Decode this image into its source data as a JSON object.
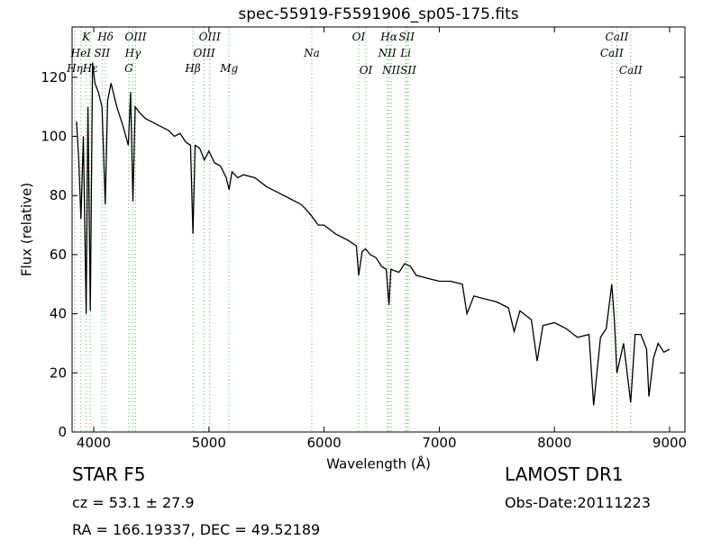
{
  "chart_data": {
    "type": "line",
    "title": "spec-55919-F5591906_sp05-175.fits",
    "xlabel": "Wavelength (Å)",
    "ylabel": "Flux (relative)",
    "xlim": [
      3812,
      9133
    ],
    "ylim": [
      0,
      137
    ],
    "xticks": [
      4000,
      5000,
      6000,
      7000,
      8000,
      9000
    ],
    "yticks": [
      0,
      20,
      40,
      60,
      80,
      100,
      120
    ],
    "line_color": "#000000",
    "marker_color": "#5cb85c",
    "x": [
      3850,
      3870,
      3889,
      3910,
      3934,
      3950,
      3970,
      3990,
      4010,
      4040,
      4072,
      4100,
      4120,
      4150,
      4200,
      4250,
      4300,
      4320,
      4340,
      4360,
      4400,
      4450,
      4500,
      4550,
      4600,
      4650,
      4700,
      4750,
      4800,
      4840,
      4861,
      4880,
      4920,
      4960,
      5000,
      5050,
      5100,
      5150,
      5175,
      5200,
      5250,
      5300,
      5400,
      5500,
      5600,
      5700,
      5800,
      5850,
      5893,
      5950,
      6000,
      6100,
      6200,
      6280,
      6300,
      6330,
      6360,
      6400,
      6450,
      6500,
      6540,
      6563,
      6580,
      6650,
      6700,
      6750,
      6800,
      6900,
      7000,
      7100,
      7200,
      7240,
      7300,
      7400,
      7500,
      7600,
      7650,
      7700,
      7800,
      7850,
      7900,
      8000,
      8100,
      8200,
      8300,
      8340,
      8400,
      8450,
      8498,
      8520,
      8542,
      8600,
      8662,
      8700,
      8750,
      8800,
      8820,
      8860,
      8900,
      8950,
      9000
    ],
    "series": [
      {
        "values": [
          105,
          92,
          72,
          100,
          40,
          110,
          41,
          125,
          118,
          115,
          110,
          77,
          112,
          118,
          110,
          104,
          97,
          115,
          78,
          110,
          108,
          106,
          105,
          104,
          103,
          102,
          100,
          101,
          98,
          97,
          67,
          97,
          96,
          92,
          95,
          91,
          90,
          86,
          82,
          88,
          86,
          87,
          86,
          83,
          81,
          79,
          77,
          75,
          73,
          70,
          70,
          67,
          65,
          63,
          53,
          61,
          62,
          60,
          59,
          56,
          55,
          43,
          55,
          54,
          57,
          56,
          53,
          52,
          51,
          51,
          50,
          40,
          46,
          45,
          44,
          42,
          34,
          41,
          38,
          24,
          36,
          37,
          35,
          32,
          33,
          9,
          32,
          35,
          50,
          38,
          20,
          30,
          10,
          33,
          33,
          28,
          12,
          25,
          30,
          27,
          28
        ]
      }
    ],
    "annotations": [
      {
        "label": "K",
        "x": 3934
      },
      {
        "label": "Hδ",
        "x": 4102
      },
      {
        "label": "OIII",
        "x": 4363
      },
      {
        "label": "OIII",
        "x": 5007
      },
      {
        "label": "OI",
        "x": 6300
      },
      {
        "label": "Hα",
        "x": 6563
      },
      {
        "label": "SII",
        "x": 6716
      },
      {
        "label": "CaII",
        "x": 8542
      },
      {
        "label": "HeI",
        "x": 3889
      },
      {
        "label": "SII",
        "x": 4072
      },
      {
        "label": "Hγ",
        "x": 4340
      },
      {
        "label": "OIII",
        "x": 4959
      },
      {
        "label": "Na",
        "x": 5893
      },
      {
        "label": "NII",
        "x": 6548
      },
      {
        "label": "Li",
        "x": 6708
      },
      {
        "label": "CaII",
        "x": 8498
      },
      {
        "label": "Hη",
        "x": 3835
      },
      {
        "label": "Hε",
        "x": 3970
      },
      {
        "label": "G",
        "x": 4304
      },
      {
        "label": "Hβ",
        "x": 4861
      },
      {
        "label": "Mg",
        "x": 5175
      },
      {
        "label": "OI",
        "x": 6363
      },
      {
        "label": "NII",
        "x": 6583
      },
      {
        "label": "SII",
        "x": 6731
      },
      {
        "label": "CaII",
        "x": 8662
      }
    ]
  },
  "info": {
    "class": "STAR   F5",
    "cz": "cz = 53.1 ± 27.9",
    "coords": "RA = 166.19337, DEC = 49.52189",
    "survey": "LAMOST DR1",
    "obs_date": "Obs-Date:20111223"
  }
}
